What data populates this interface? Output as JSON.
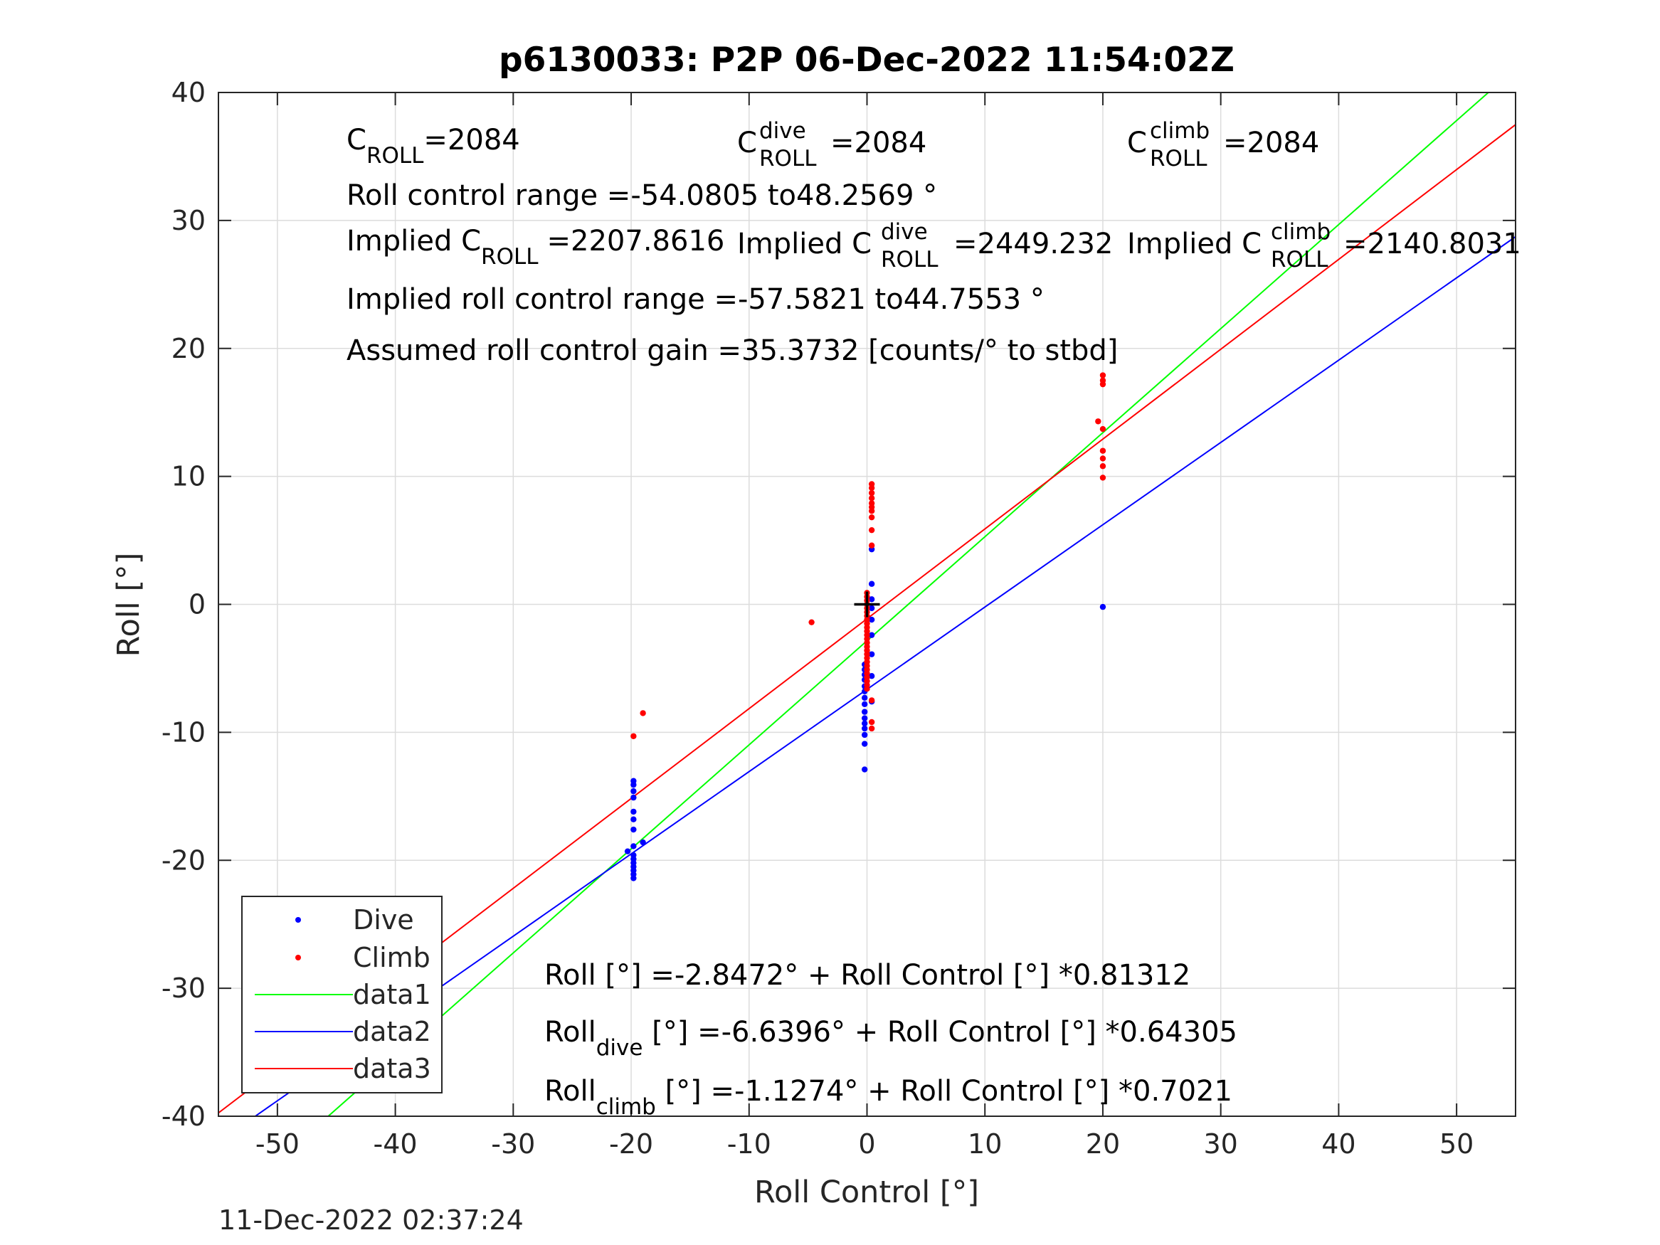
{
  "chart_data": {
    "type": "scatter",
    "title": "p6130033: P2P 06-Dec-2022 11:54:02Z",
    "xlabel": "Roll Control [°]",
    "ylabel": "Roll [°]",
    "xlim": [
      -55,
      55
    ],
    "ylim": [
      -40,
      40
    ],
    "xticks": [
      -50,
      -40,
      -30,
      -20,
      -10,
      0,
      10,
      20,
      30,
      40,
      50
    ],
    "yticks": [
      -40,
      -30,
      -20,
      -10,
      0,
      10,
      20,
      30,
      40
    ],
    "xtick_labels": [
      "-50",
      "-40",
      "-30",
      "-20",
      "-10",
      "0",
      "10",
      "20",
      "30",
      "40",
      "50"
    ],
    "ytick_labels": [
      "-40",
      "-30",
      "-20",
      "-10",
      "0",
      "10",
      "20",
      "30",
      "40"
    ],
    "grid": true,
    "legend_position": "bottom-left",
    "timestamp": "11-Dec-2022 02:37:24",
    "colors": {
      "dive": "#0000ff",
      "climb": "#ff0000",
      "data1": "#00ff00",
      "data2": "#0000ff",
      "data3": "#ff0000",
      "axis": "#262626",
      "grid": "#dcdcdc"
    },
    "series": [
      {
        "name": "Dive",
        "kind": "points",
        "color": "#0000ff",
        "points": [
          [
            -19.8,
            -13.8
          ],
          [
            -19.8,
            -14.1
          ],
          [
            -19.8,
            -14.6
          ],
          [
            -19.8,
            -15.1
          ],
          [
            -19.8,
            -16.2
          ],
          [
            -19.8,
            -16.8
          ],
          [
            -19.8,
            -17.6
          ],
          [
            -19.8,
            -18.9
          ],
          [
            -19.8,
            -19.6
          ],
          [
            -19.8,
            -19.9
          ],
          [
            -19.8,
            -20.2
          ],
          [
            -19.8,
            -20.5
          ],
          [
            -19.8,
            -20.8
          ],
          [
            -19.8,
            -21.1
          ],
          [
            -19.8,
            -21.4
          ],
          [
            -20.3,
            -19.3
          ],
          [
            -19.0,
            -18.6
          ],
          [
            -0.2,
            -4.7
          ],
          [
            -0.2,
            -5.1
          ],
          [
            -0.2,
            -5.5
          ],
          [
            -0.2,
            -5.9
          ],
          [
            -0.2,
            -6.4
          ],
          [
            -0.2,
            -6.8
          ],
          [
            -0.2,
            -7.3
          ],
          [
            -0.2,
            -7.8
          ],
          [
            -0.2,
            -8.4
          ],
          [
            -0.2,
            -8.9
          ],
          [
            -0.2,
            -9.3
          ],
          [
            -0.2,
            -9.7
          ],
          [
            -0.2,
            -10.2
          ],
          [
            -0.2,
            -10.9
          ],
          [
            -0.2,
            -12.9
          ],
          [
            0.4,
            -1.2
          ],
          [
            0.4,
            -0.3
          ],
          [
            0.4,
            0.4
          ],
          [
            0.4,
            1.6
          ],
          [
            0.4,
            4.3
          ],
          [
            0.4,
            -2.4
          ],
          [
            0.4,
            -3.9
          ],
          [
            0.4,
            -5.6
          ],
          [
            0.4,
            -7.6
          ],
          [
            20.0,
            -0.2
          ]
        ]
      },
      {
        "name": "Climb",
        "kind": "points",
        "color": "#ff0000",
        "points": [
          [
            -19.8,
            -10.3
          ],
          [
            -19.0,
            -8.5
          ],
          [
            -4.7,
            -1.4
          ],
          [
            0.4,
            9.4
          ],
          [
            0.4,
            9.1
          ],
          [
            0.4,
            8.7
          ],
          [
            0.4,
            8.3
          ],
          [
            0.4,
            7.9
          ],
          [
            0.4,
            7.6
          ],
          [
            0.4,
            7.3
          ],
          [
            0.4,
            6.8
          ],
          [
            0.4,
            5.8
          ],
          [
            0.4,
            4.6
          ],
          [
            0.0,
            0.9
          ],
          [
            0.0,
            0.6
          ],
          [
            0.0,
            0.3
          ],
          [
            0.0,
            0.0
          ],
          [
            0.0,
            -0.3
          ],
          [
            0.0,
            -0.6
          ],
          [
            0.0,
            -0.9
          ],
          [
            0.0,
            -1.2
          ],
          [
            0.0,
            -1.5
          ],
          [
            0.0,
            -1.8
          ],
          [
            0.0,
            -2.1
          ],
          [
            0.0,
            -2.4
          ],
          [
            0.0,
            -2.7
          ],
          [
            0.0,
            -3.0
          ],
          [
            0.0,
            -3.3
          ],
          [
            0.0,
            -3.6
          ],
          [
            0.0,
            -3.9
          ],
          [
            0.0,
            -4.2
          ],
          [
            0.0,
            -4.5
          ],
          [
            0.0,
            -4.8
          ],
          [
            0.0,
            -5.1
          ],
          [
            0.0,
            -5.4
          ],
          [
            0.0,
            -5.7
          ],
          [
            0.0,
            -6.0
          ],
          [
            0.0,
            -6.3
          ],
          [
            0.0,
            -6.6
          ],
          [
            0.4,
            -7.5
          ],
          [
            0.4,
            -9.2
          ],
          [
            0.4,
            -9.7
          ],
          [
            19.6,
            14.3
          ],
          [
            20.0,
            17.9
          ],
          [
            20.0,
            17.5
          ],
          [
            20.0,
            17.2
          ],
          [
            20.0,
            13.7
          ],
          [
            20.0,
            12.0
          ],
          [
            20.0,
            11.4
          ],
          [
            20.0,
            10.8
          ],
          [
            20.0,
            9.9
          ]
        ]
      },
      {
        "name": "data1",
        "kind": "line",
        "color": "#00ff00",
        "intercept": -2.8472,
        "slope": 0.81312
      },
      {
        "name": "data2",
        "kind": "line",
        "color": "#0000ff",
        "intercept": -6.6396,
        "slope": 0.64305
      },
      {
        "name": "data3",
        "kind": "line",
        "color": "#ff0000",
        "intercept": -1.1274,
        "slope": 0.7021
      }
    ],
    "origin_marker": [
      0,
      0
    ],
    "annotations": {
      "c_roll": {
        "main": "C",
        "sub": "ROLL",
        "value": "=2084"
      },
      "c_roll_dive": {
        "main": "C",
        "sup": "dive",
        "sub": "ROLL",
        "value": "=2084"
      },
      "c_roll_climb": {
        "main": "C",
        "sup": "climb",
        "sub": "ROLL",
        "value": "=2084"
      },
      "roll_control_range": "Roll control range =-54.0805 to48.2569 °",
      "implied_c_roll": {
        "main": "Implied C",
        "sub": "ROLL",
        "value": "=2207.8616"
      },
      "implied_c_roll_dive": {
        "main": "Implied C",
        "sup": "dive",
        "sub": "ROLL",
        "value": "=2449.232"
      },
      "implied_c_roll_climb": {
        "main": "Implied C",
        "sup": "climb",
        "sub": "ROLL",
        "value": "=2140.8031"
      },
      "implied_roll_range": "Implied roll control range =-57.5821 to44.7553 °",
      "assumed_gain": "Assumed roll control gain =35.3732 [counts/° to stbd]",
      "fit_all": {
        "main": "Roll",
        "rest": " [°] =-2.8472° + Roll Control [°] *0.81312"
      },
      "fit_dive": {
        "main": "Roll",
        "sub": "dive",
        "rest": " [°] =-6.6396° + Roll Control [°] *0.64305"
      },
      "fit_climb": {
        "main": "Roll",
        "sub": "climb",
        "rest": " [°] =-1.1274° + Roll Control [°] *0.7021"
      }
    }
  }
}
